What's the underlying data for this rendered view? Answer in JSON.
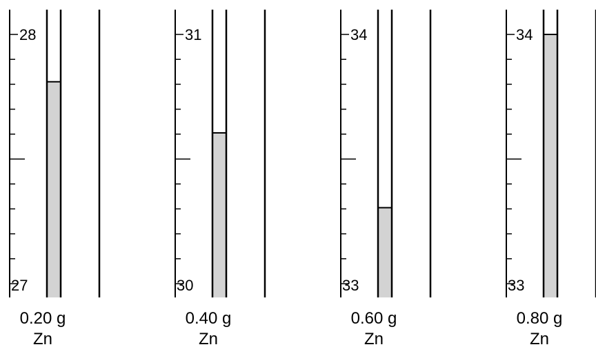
{
  "thermometers": [
    {
      "top_label": "28",
      "bottom_label": "27",
      "top_value": 28,
      "bottom_value": 27,
      "reading_fraction": 0.81,
      "mass_label": "0.20 g",
      "substance_label": "Zn"
    },
    {
      "top_label": "31",
      "bottom_label": "30",
      "top_value": 31,
      "bottom_value": 30,
      "reading_fraction": 0.605,
      "mass_label": "0.40 g",
      "substance_label": "Zn"
    },
    {
      "top_label": "34",
      "bottom_label": "33",
      "top_value": 34,
      "bottom_value": 33,
      "reading_fraction": 0.305,
      "mass_label": "0.60 g",
      "substance_label": "Zn"
    },
    {
      "top_label": "34",
      "bottom_label": "33",
      "top_value": 34,
      "bottom_value": 33,
      "reading_fraction": 1.0,
      "mass_label": "0.80 g",
      "substance_label": "Zn"
    }
  ],
  "colors": {
    "fluid": "#d3d3d3",
    "line": "#000000"
  }
}
